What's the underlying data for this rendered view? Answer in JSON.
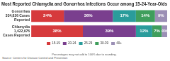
{
  "chart_data": {
    "type": "bar",
    "title": "Most Reported Chlamydia and Gonorrhea Infections Occur among 15-24-Year-Olds",
    "categories": [
      "Gonorrhea 334,826 Cases Reported",
      "Chlamydia 1,422,976 Cases Reported"
    ],
    "series": [
      {
        "name": "15-19",
        "color": "#d63a3c",
        "values": [
          24,
          38
        ],
        "value_labels": [
          "24%",
          "38%"
        ]
      },
      {
        "name": "20-24",
        "color": "#7a3f8e",
        "values": [
          36,
          39
        ],
        "value_labels": [
          "36%",
          "39%"
        ]
      },
      {
        "name": "25-29",
        "color": "#2a9c9b",
        "values": [
          17,
          12
        ],
        "value_labels": [
          "17%",
          "12%"
        ]
      },
      {
        "name": "30-39",
        "color": "#3f9e5c",
        "values": [
          14,
          7
        ],
        "value_labels": [
          "14%",
          "7%"
        ]
      },
      {
        "name": "40+",
        "color": "#9b8fb5",
        "values": [
          9,
          4
        ],
        "value_labels": [
          "9%",
          "4%"
        ]
      }
    ],
    "xlim": [
      0,
      100
    ],
    "orientation": "horizontal",
    "stacked": true,
    "data_labels": true,
    "tick_labels": "y",
    "grid": false,
    "legend": "bottom",
    "footnote": "Percentages may not add to 100% due to rounding.",
    "source": "Source: Centers for Disease Control and Prevention"
  }
}
